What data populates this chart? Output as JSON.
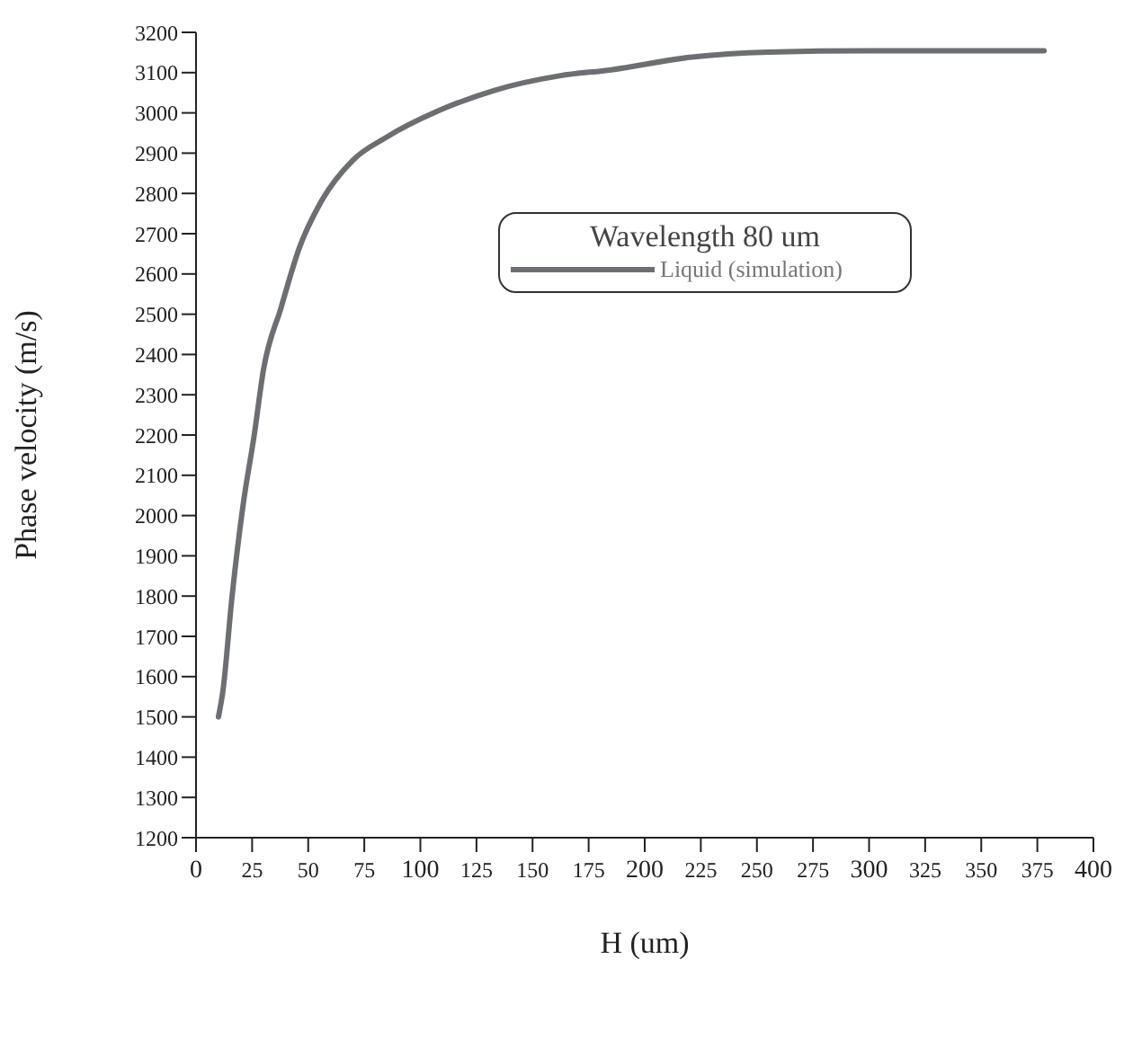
{
  "chart_data": {
    "type": "line",
    "xlabel": "H (um)",
    "ylabel": "Phase velocity (m/s)",
    "legend_title": "Wavelength 80 um",
    "legend": "top right",
    "grid": false,
    "marker": "none",
    "line_style": "solid",
    "xlim": [
      0,
      400
    ],
    "xticks": [
      0,
      25,
      50,
      75,
      100,
      125,
      150,
      175,
      200,
      225,
      250,
      275,
      300,
      325,
      350,
      375,
      400
    ],
    "ylim": [
      1200,
      3200
    ],
    "yticks": [
      1200,
      1300,
      1400,
      1500,
      1600,
      1700,
      1800,
      1900,
      2000,
      2100,
      2200,
      2300,
      2400,
      2500,
      2600,
      2700,
      2800,
      2900,
      3000,
      3100,
      3200
    ],
    "series": [
      {
        "name": "Liquid (simulation)",
        "color": "#6d6e71",
        "x": [
          10,
          12,
          16,
          21,
          26,
          30,
          38,
          46,
          56,
          70,
          85,
          108,
          133,
          162,
          185,
          220,
          255,
          300,
          378
        ],
        "values": [
          1500,
          1565,
          1796,
          2027,
          2202,
          2360,
          2518,
          2664,
          2782,
          2883,
          2940,
          3005,
          3056,
          3092,
          3107,
          3138,
          3151,
          3154,
          3154
        ]
      }
    ]
  }
}
